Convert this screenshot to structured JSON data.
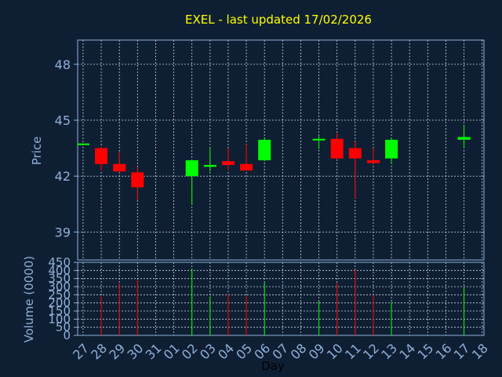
{
  "chart_data": {
    "type": "candlestick",
    "title": "EXEL - last updated 17/02/2026",
    "xlabel": "Day",
    "price_axis": {
      "label": "Price",
      "ylim": [
        37.5,
        49.3
      ],
      "ticks": [
        39,
        42,
        45,
        48
      ]
    },
    "volume_axis": {
      "label": "Volume (0000)",
      "ylim": [
        0,
        450
      ],
      "ticks": [
        0,
        50,
        100,
        150,
        200,
        250,
        300,
        350,
        400,
        450
      ]
    },
    "x_ticks": [
      "27",
      "28",
      "29",
      "30",
      "31",
      "01",
      "02",
      "03",
      "04",
      "05",
      "06",
      "07",
      "08",
      "09",
      "10",
      "11",
      "12",
      "13",
      "14",
      "15",
      "16",
      "17",
      "18"
    ],
    "grid": true,
    "colors": {
      "up": "#00ff00",
      "down": "#ff0000",
      "background": "#0f1f33",
      "axis": "#8fb0d8",
      "title": "#ffff00"
    },
    "candles": [
      {
        "day": "27",
        "open": 43.75,
        "high": 43.75,
        "low": 43.75,
        "close": 43.75,
        "volume": 0
      },
      {
        "day": "28",
        "open": 43.5,
        "high": 43.6,
        "low": 42.3,
        "close": 42.65,
        "volume": 240
      },
      {
        "day": "29",
        "open": 42.65,
        "high": 43.3,
        "low": 42.2,
        "close": 42.25,
        "volume": 320
      },
      {
        "day": "30",
        "open": 42.2,
        "high": 42.5,
        "low": 40.7,
        "close": 41.4,
        "volume": 340
      },
      {
        "day": "02",
        "open": 42.0,
        "high": 42.85,
        "low": 40.45,
        "close": 42.85,
        "volume": 410
      },
      {
        "day": "03",
        "open": 42.5,
        "high": 43.55,
        "low": 42.25,
        "close": 42.6,
        "volume": 240
      },
      {
        "day": "04",
        "open": 42.8,
        "high": 43.5,
        "low": 42.3,
        "close": 42.6,
        "volume": 255
      },
      {
        "day": "05",
        "open": 42.65,
        "high": 43.7,
        "low": 42.3,
        "close": 42.3,
        "volume": 245
      },
      {
        "day": "06",
        "open": 42.85,
        "high": 44.05,
        "low": 42.8,
        "close": 43.95,
        "volume": 330
      },
      {
        "day": "09",
        "open": 43.95,
        "high": 44.15,
        "low": 43.45,
        "close": 44.0,
        "volume": 210
      },
      {
        "day": "10",
        "open": 44.0,
        "high": 44.3,
        "low": 42.9,
        "close": 42.95,
        "volume": 325
      },
      {
        "day": "11",
        "open": 43.5,
        "high": 43.85,
        "low": 40.8,
        "close": 42.95,
        "volume": 405
      },
      {
        "day": "12",
        "open": 42.85,
        "high": 43.5,
        "low": 42.65,
        "close": 42.7,
        "volume": 250
      },
      {
        "day": "13",
        "open": 42.95,
        "high": 44.05,
        "low": 42.65,
        "close": 43.95,
        "volume": 205
      },
      {
        "day": "17",
        "open": 43.95,
        "high": 44.7,
        "low": 43.5,
        "close": 44.1,
        "volume": 300
      }
    ]
  }
}
